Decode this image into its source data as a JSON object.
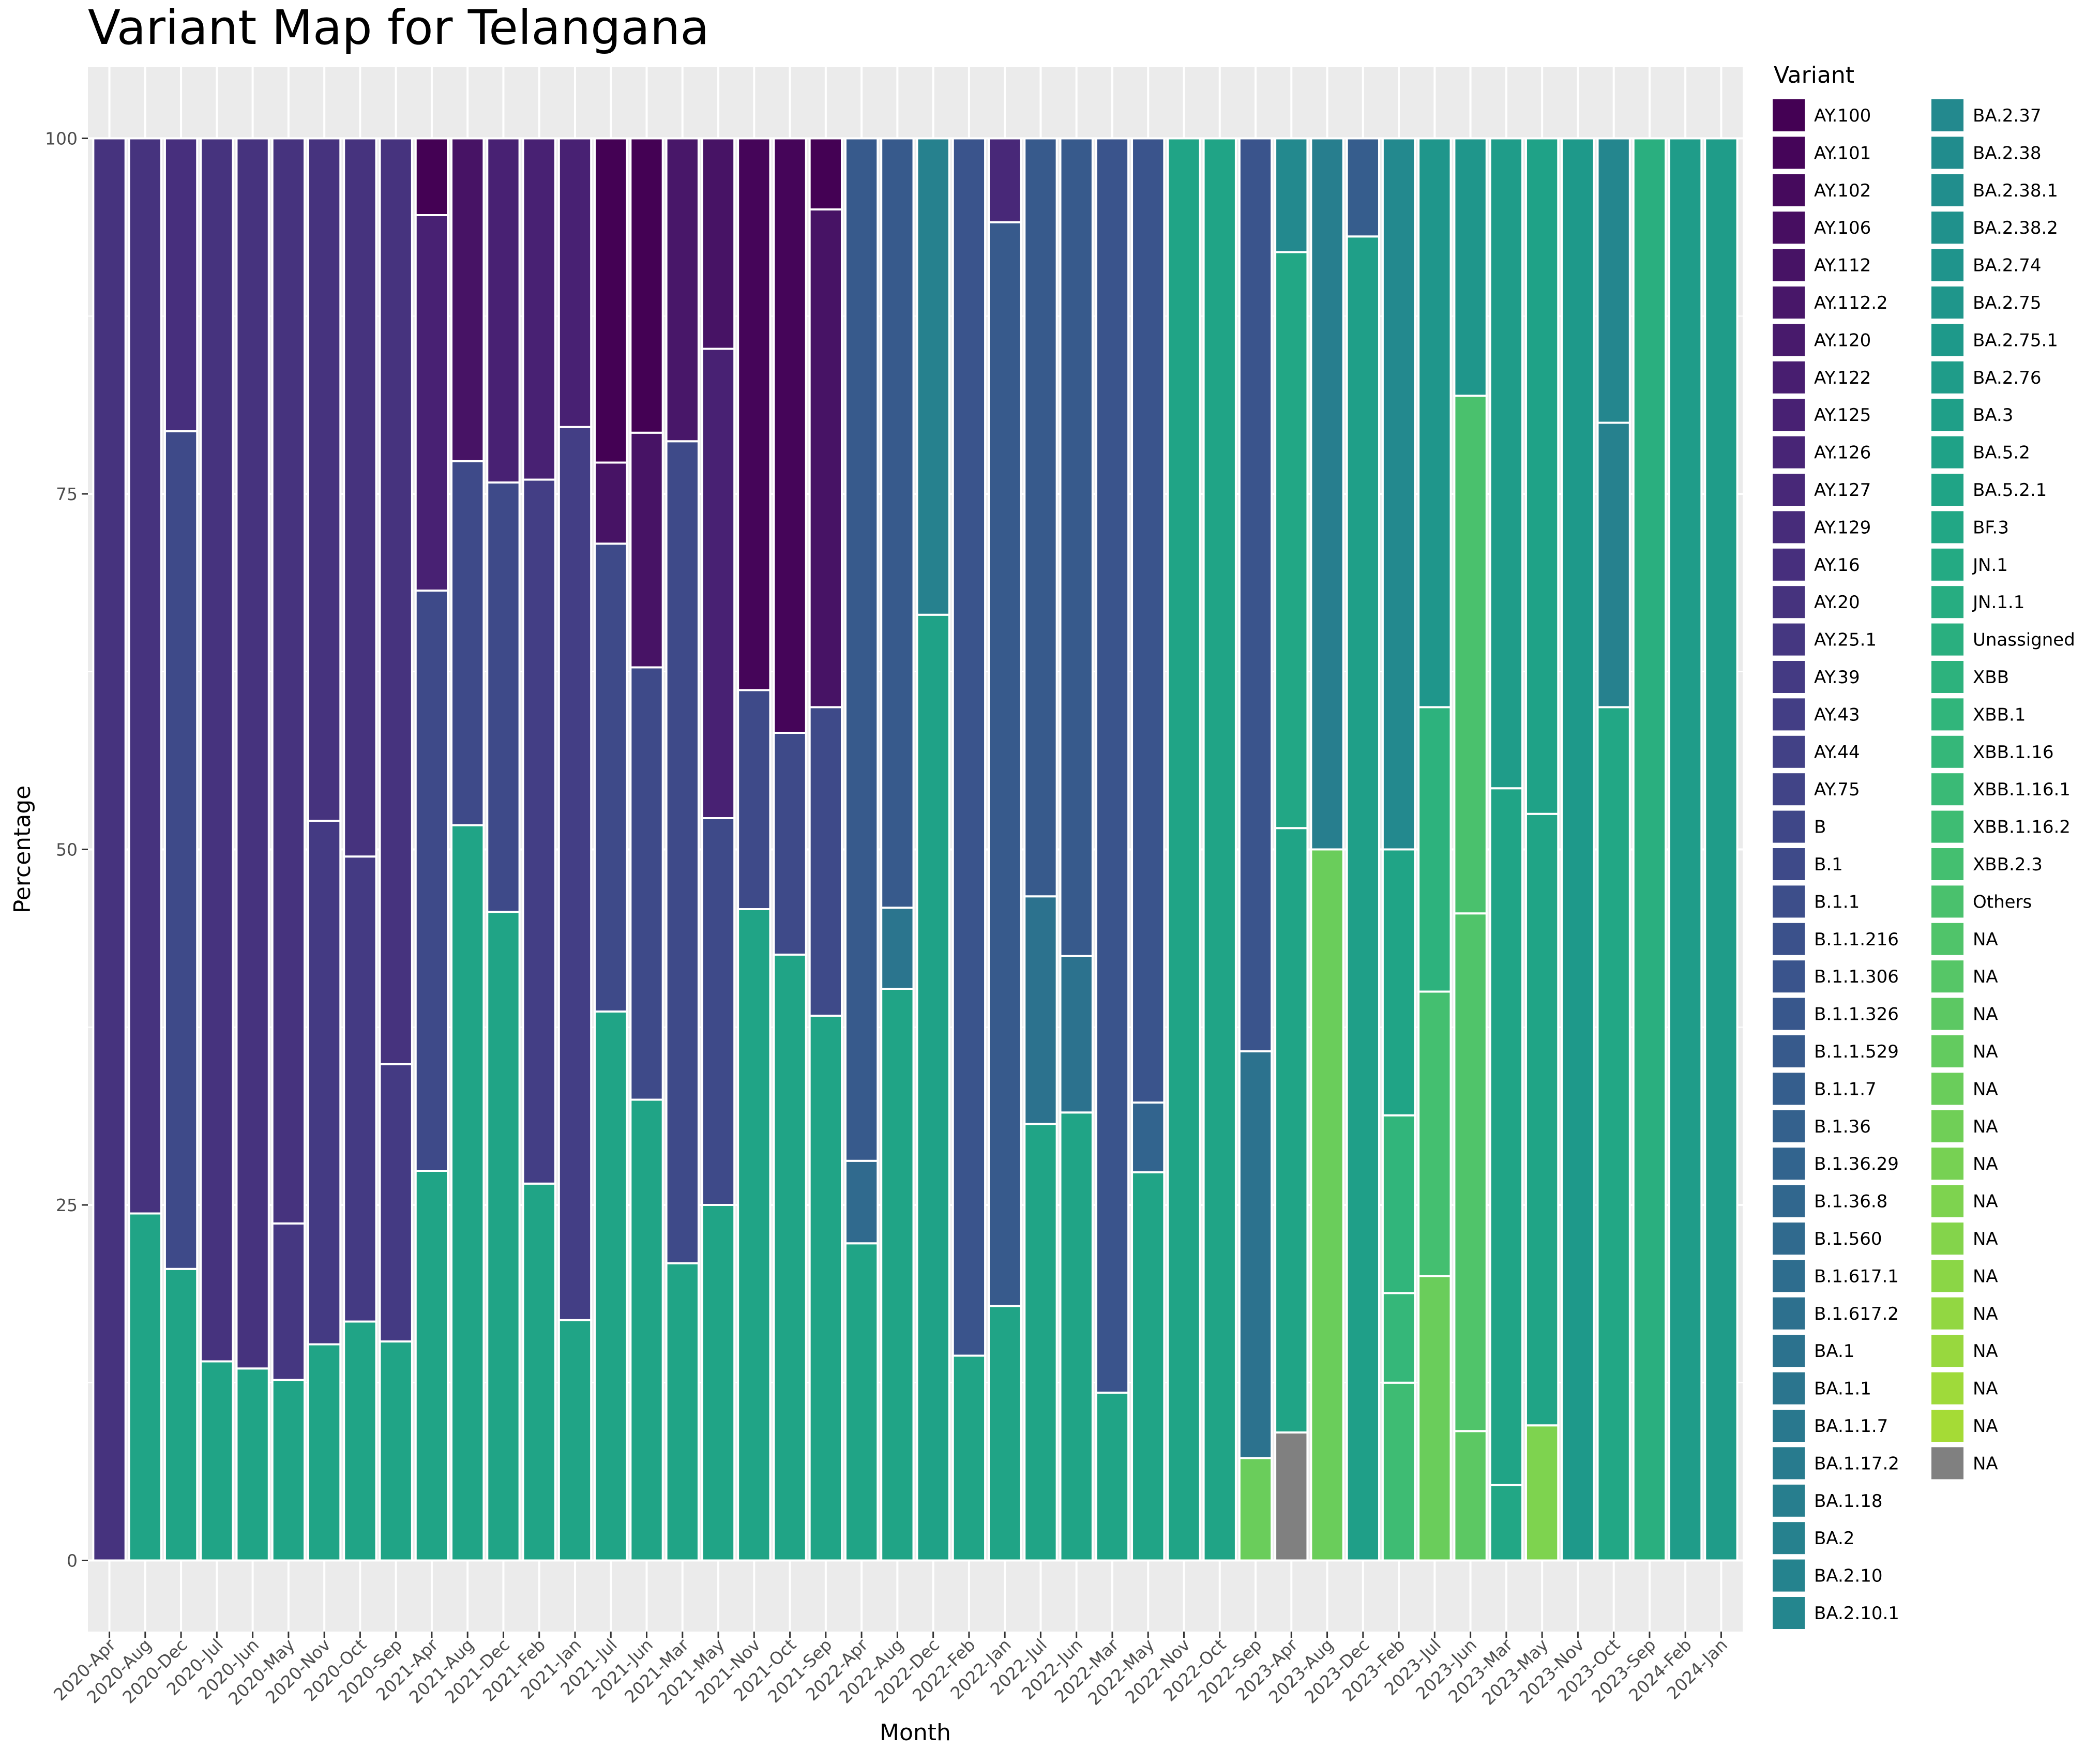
{
  "chart_data": {
    "type": "bar",
    "stacked": true,
    "title": "Variant Map for Telangana",
    "xlabel": "Month",
    "ylabel": "Percentage",
    "ylim": [
      -5,
      105
    ],
    "yticks": [
      0,
      25,
      50,
      75,
      100
    ],
    "legend_title": "Variant",
    "legend_position": "right",
    "grid": true,
    "na_color": "#808080",
    "categories": [
      "2020-Apr",
      "2020-Aug",
      "2020-Dec",
      "2020-Jul",
      "2020-Jun",
      "2020-May",
      "2020-Nov",
      "2020-Oct",
      "2020-Sep",
      "2021-Apr",
      "2021-Aug",
      "2021-Dec",
      "2021-Feb",
      "2021-Jan",
      "2021-Jul",
      "2021-Jun",
      "2021-Mar",
      "2021-May",
      "2021-Nov",
      "2021-Oct",
      "2021-Sep",
      "2022-Apr",
      "2022-Aug",
      "2022-Dec",
      "2022-Feb",
      "2022-Jan",
      "2022-Jul",
      "2022-Jun",
      "2022-Mar",
      "2022-May",
      "2022-Nov",
      "2022-Oct",
      "2022-Sep",
      "2023-Apr",
      "2023-Aug",
      "2023-Dec",
      "2023-Feb",
      "2023-Jul",
      "2023-Jun",
      "2023-Mar",
      "2023-May",
      "2023-Nov",
      "2023-Oct",
      "2023-Sep",
      "2024-Feb",
      "2024-Jan"
    ],
    "legend": [
      {
        "name": "AY.100",
        "color": "#440154"
      },
      {
        "name": "AY.101",
        "color": "#450559"
      },
      {
        "name": "AY.102",
        "color": "#460a5d"
      },
      {
        "name": "AY.106",
        "color": "#470e61"
      },
      {
        "name": "AY.112",
        "color": "#471365"
      },
      {
        "name": "AY.112.2",
        "color": "#481769"
      },
      {
        "name": "AY.120",
        "color": "#481a6c"
      },
      {
        "name": "AY.122",
        "color": "#481e70"
      },
      {
        "name": "AY.125",
        "color": "#482173"
      },
      {
        "name": "AY.126",
        "color": "#482576"
      },
      {
        "name": "AY.127",
        "color": "#482878"
      },
      {
        "name": "AY.129",
        "color": "#472c7a"
      },
      {
        "name": "AY.16",
        "color": "#472f7d"
      },
      {
        "name": "AY.20",
        "color": "#46337e"
      },
      {
        "name": "AY.25.1",
        "color": "#453781"
      },
      {
        "name": "AY.39",
        "color": "#443a83"
      },
      {
        "name": "AY.43",
        "color": "#433e85"
      },
      {
        "name": "AY.44",
        "color": "#424186"
      },
      {
        "name": "AY.75",
        "color": "#414487"
      },
      {
        "name": "B",
        "color": "#3f4788"
      },
      {
        "name": "B.1",
        "color": "#3e4a89"
      },
      {
        "name": "B.1.1",
        "color": "#3d4e8a"
      },
      {
        "name": "B.1.1.216",
        "color": "#3b518b"
      },
      {
        "name": "B.1.1.306",
        "color": "#3a548c"
      },
      {
        "name": "B.1.1.326",
        "color": "#38578c"
      },
      {
        "name": "B.1.1.529",
        "color": "#375a8c"
      },
      {
        "name": "B.1.1.7",
        "color": "#355e8d"
      },
      {
        "name": "B.1.36",
        "color": "#34618d"
      },
      {
        "name": "B.1.36.29",
        "color": "#32648e"
      },
      {
        "name": "B.1.36.8",
        "color": "#31678e"
      },
      {
        "name": "B.1.560",
        "color": "#306a8e"
      },
      {
        "name": "B.1.617.1",
        "color": "#2e6d8e"
      },
      {
        "name": "B.1.617.2",
        "color": "#2d708e"
      },
      {
        "name": "BA.1",
        "color": "#2c728e"
      },
      {
        "name": "BA.1.1",
        "color": "#2b758e"
      },
      {
        "name": "BA.1.1.7",
        "color": "#29788e"
      },
      {
        "name": "BA.1.17.2",
        "color": "#287b8e"
      },
      {
        "name": "BA.1.18",
        "color": "#277e8e"
      },
      {
        "name": "BA.2",
        "color": "#26818e"
      },
      {
        "name": "BA.2.10",
        "color": "#25838e"
      },
      {
        "name": "BA.2.10.1",
        "color": "#24868e"
      },
      {
        "name": "BA.2.37",
        "color": "#23898e"
      },
      {
        "name": "BA.2.38",
        "color": "#218c8d"
      },
      {
        "name": "BA.2.38.1",
        "color": "#218e8d"
      },
      {
        "name": "BA.2.38.2",
        "color": "#20918c"
      },
      {
        "name": "BA.2.74",
        "color": "#1f948c"
      },
      {
        "name": "BA.2.75",
        "color": "#1f968b"
      },
      {
        "name": "BA.2.75.1",
        "color": "#1e998a"
      },
      {
        "name": "BA.2.76",
        "color": "#1f9c89"
      },
      {
        "name": "BA.3",
        "color": "#1f9f88"
      },
      {
        "name": "BA.5.2",
        "color": "#1fa287"
      },
      {
        "name": "BA.5.2.1",
        "color": "#20a486"
      },
      {
        "name": "BF.3",
        "color": "#22a785"
      },
      {
        "name": "JN.1",
        "color": "#24aa83"
      },
      {
        "name": "JN.1.1",
        "color": "#27ad81"
      },
      {
        "name": "Unassigned",
        "color": "#2aaf7f"
      },
      {
        "name": "XBB",
        "color": "#2db27d"
      },
      {
        "name": "XBB.1",
        "color": "#31b57b"
      },
      {
        "name": "XBB.1.16",
        "color": "#35b779"
      },
      {
        "name": "XBB.1.16.1",
        "color": "#3aba76"
      },
      {
        "name": "XBB.1.16.2",
        "color": "#3ebc73"
      },
      {
        "name": "XBB.2.3",
        "color": "#44bf70"
      },
      {
        "name": "Others",
        "color": "#4ac16d"
      },
      {
        "name": "NA",
        "color": "#50c46a"
      },
      {
        "name": "NA",
        "color": "#56c667"
      },
      {
        "name": "NA",
        "color": "#5cc863"
      },
      {
        "name": "NA",
        "color": "#63cb5f"
      },
      {
        "name": "NA",
        "color": "#6acd5b"
      },
      {
        "name": "NA",
        "color": "#70cf57"
      },
      {
        "name": "NA",
        "color": "#77d153"
      },
      {
        "name": "NA",
        "color": "#7ed34f"
      },
      {
        "name": "NA",
        "color": "#84d44b"
      },
      {
        "name": "NA",
        "color": "#8bd646"
      },
      {
        "name": "NA",
        "color": "#92d742"
      },
      {
        "name": "NA",
        "color": "#98d83e"
      },
      {
        "name": "NA",
        "color": "#9fda3a"
      },
      {
        "name": "NA",
        "color": "#a5db36"
      },
      {
        "name": "NA",
        "color": "#808080"
      }
    ],
    "stacks": [
      [
        {
          "c": "#46337e",
          "v": 100
        }
      ],
      [
        {
          "c": "#20a486",
          "v": 24.4
        },
        {
          "c": "#46337e",
          "v": 75.6
        }
      ],
      [
        {
          "c": "#20a486",
          "v": 20.5
        },
        {
          "c": "#3e4a89",
          "v": 58.9
        },
        {
          "c": "#472f7d",
          "v": 20.6
        }
      ],
      [
        {
          "c": "#20a486",
          "v": 14
        },
        {
          "c": "#46337e",
          "v": 86
        }
      ],
      [
        {
          "c": "#20a486",
          "v": 13.5
        },
        {
          "c": "#46337e",
          "v": 86.5
        }
      ],
      [
        {
          "c": "#20a486",
          "v": 12.7
        },
        {
          "c": "#453781",
          "v": 11
        },
        {
          "c": "#46337e",
          "v": 76.3
        }
      ],
      [
        {
          "c": "#20a486",
          "v": 15.2
        },
        {
          "c": "#443a83",
          "v": 36.8
        },
        {
          "c": "#46337e",
          "v": 48
        }
      ],
      [
        {
          "c": "#20a486",
          "v": 16.8
        },
        {
          "c": "#443a83",
          "v": 32.7
        },
        {
          "c": "#46337e",
          "v": 50.5
        }
      ],
      [
        {
          "c": "#20a486",
          "v": 15.4
        },
        {
          "c": "#443a83",
          "v": 19.5
        },
        {
          "c": "#46337e",
          "v": 65.1
        }
      ],
      [
        {
          "c": "#20a486",
          "v": 27.4
        },
        {
          "c": "#3e4a89",
          "v": 40.8
        },
        {
          "c": "#482173",
          "v": 26.4
        },
        {
          "c": "#440154",
          "v": 5.4
        }
      ],
      [
        {
          "c": "#20a486",
          "v": 51.7
        },
        {
          "c": "#3e4a89",
          "v": 25.6
        },
        {
          "c": "#471365",
          "v": 22.7
        }
      ],
      [
        {
          "c": "#20a486",
          "v": 45.6
        },
        {
          "c": "#3e4a89",
          "v": 30.2
        },
        {
          "c": "#482173",
          "v": 24.2
        }
      ],
      [
        {
          "c": "#20a486",
          "v": 26.5
        },
        {
          "c": "#433e85",
          "v": 49.5
        },
        {
          "c": "#482173",
          "v": 24
        }
      ],
      [
        {
          "c": "#20a486",
          "v": 16.9
        },
        {
          "c": "#433e85",
          "v": 62.8
        },
        {
          "c": "#482173",
          "v": 20.3
        }
      ],
      [
        {
          "c": "#20a486",
          "v": 38.6
        },
        {
          "c": "#3e4a89",
          "v": 32.9
        },
        {
          "c": "#471365",
          "v": 5.7
        },
        {
          "c": "#440154",
          "v": 22.8
        }
      ],
      [
        {
          "c": "#20a486",
          "v": 32.4
        },
        {
          "c": "#3e4a89",
          "v": 30.4
        },
        {
          "c": "#471365",
          "v": 16.5
        },
        {
          "c": "#440154",
          "v": 20.7
        }
      ],
      [
        {
          "c": "#20a486",
          "v": 20.9
        },
        {
          "c": "#3e4a89",
          "v": 57.8
        },
        {
          "c": "#481769",
          "v": 21.3
        }
      ],
      [
        {
          "c": "#20a486",
          "v": 25
        },
        {
          "c": "#3e4a89",
          "v": 27.2
        },
        {
          "c": "#482173",
          "v": 33
        },
        {
          "c": "#471365",
          "v": 14.8
        }
      ],
      [
        {
          "c": "#20a486",
          "v": 45.8
        },
        {
          "c": "#3e4a89",
          "v": 15.4
        },
        {
          "c": "#450559",
          "v": 38.8
        }
      ],
      [
        {
          "c": "#20a486",
          "v": 42.6
        },
        {
          "c": "#3e4a89",
          "v": 15.6
        },
        {
          "c": "#450559",
          "v": 41.8
        }
      ],
      [
        {
          "c": "#20a486",
          "v": 38.3
        },
        {
          "c": "#3e4a89",
          "v": 21.7
        },
        {
          "c": "#471365",
          "v": 35
        },
        {
          "c": "#440154",
          "v": 5
        }
      ],
      [
        {
          "c": "#20a486",
          "v": 22.3
        },
        {
          "c": "#306a8e",
          "v": 5.8
        },
        {
          "c": "#375a8c",
          "v": 71.9
        }
      ],
      [
        {
          "c": "#20a486",
          "v": 40.2
        },
        {
          "c": "#2b758e",
          "v": 5.7
        },
        {
          "c": "#375a8c",
          "v": 54.1
        }
      ],
      [
        {
          "c": "#1fa287",
          "v": 66.5
        },
        {
          "c": "#26818e",
          "v": 33.5
        }
      ],
      [
        {
          "c": "#20a486",
          "v": 14.4
        },
        {
          "c": "#3a548c",
          "v": 85.6
        }
      ],
      [
        {
          "c": "#20a486",
          "v": 17.9
        },
        {
          "c": "#375a8c",
          "v": 76.2
        },
        {
          "c": "#482878",
          "v": 5.9
        }
      ],
      [
        {
          "c": "#20a486",
          "v": 30.7
        },
        {
          "c": "#2c728e",
          "v": 16
        },
        {
          "c": "#375a8c",
          "v": 53.3
        }
      ],
      [
        {
          "c": "#20a486",
          "v": 31.5
        },
        {
          "c": "#2c728e",
          "v": 11
        },
        {
          "c": "#375a8c",
          "v": 57.5
        }
      ],
      [
        {
          "c": "#20a486",
          "v": 11.8
        },
        {
          "c": "#3a548c",
          "v": 88.2
        }
      ],
      [
        {
          "c": "#20a486",
          "v": 27.3
        },
        {
          "c": "#32648e",
          "v": 4.9
        },
        {
          "c": "#3a548c",
          "v": 67.8
        }
      ],
      [
        {
          "c": "#20a486",
          "v": 100
        }
      ],
      [
        {
          "c": "#20a486",
          "v": 100
        }
      ],
      [
        {
          "c": "#6acd5b",
          "v": 7.2
        },
        {
          "c": "#2c728e",
          "v": 28.6
        },
        {
          "c": "#3a548c",
          "v": 64.2
        }
      ],
      [
        {
          "c": "#808080",
          "v": 9
        },
        {
          "c": "#20a486",
          "v": 42.5
        },
        {
          "c": "#22a785",
          "v": 40.5
        },
        {
          "c": "#23898e",
          "v": 8
        }
      ],
      [
        {
          "c": "#6acd5b",
          "v": 50
        },
        {
          "c": "#277e8e",
          "v": 50
        }
      ],
      [
        {
          "c": "#1f9f88",
          "v": 93.1
        },
        {
          "c": "#365d8d",
          "v": 6.9
        }
      ],
      [
        {
          "c": "#3ebc73",
          "v": 12.5
        },
        {
          "c": "#35b779",
          "v": 6.3
        },
        {
          "c": "#31b57b",
          "v": 12.5
        },
        {
          "c": "#20a486",
          "v": 18.7
        },
        {
          "c": "#23898e",
          "v": 50
        }
      ],
      [
        {
          "c": "#6acd5b",
          "v": 20
        },
        {
          "c": "#44bf70",
          "v": 20
        },
        {
          "c": "#2db27d",
          "v": 20
        },
        {
          "c": "#1f968b",
          "v": 40
        }
      ],
      [
        {
          "c": "#5cc863",
          "v": 9.1
        },
        {
          "c": "#50c46a",
          "v": 36.4
        },
        {
          "c": "#4ac16d",
          "v": 36.4
        },
        {
          "c": "#1f968b",
          "v": 18.1
        }
      ],
      [
        {
          "c": "#22a785",
          "v": 5.3
        },
        {
          "c": "#20a486",
          "v": 49
        },
        {
          "c": "#1f9c89",
          "v": 45.7
        }
      ],
      [
        {
          "c": "#7ed34f",
          "v": 9.5
        },
        {
          "c": "#20a486",
          "v": 43
        },
        {
          "c": "#1fa287",
          "v": 47.5
        }
      ],
      [
        {
          "c": "#1e998a",
          "v": 100
        }
      ],
      [
        {
          "c": "#22a785",
          "v": 60
        },
        {
          "c": "#26818e",
          "v": 20
        },
        {
          "c": "#24868e",
          "v": 20
        }
      ],
      [
        {
          "c": "#2aaf7f",
          "v": 100
        }
      ],
      [
        {
          "c": "#1f9c89",
          "v": 100
        }
      ],
      [
        {
          "c": "#1f9c89",
          "v": 100
        }
      ]
    ]
  }
}
